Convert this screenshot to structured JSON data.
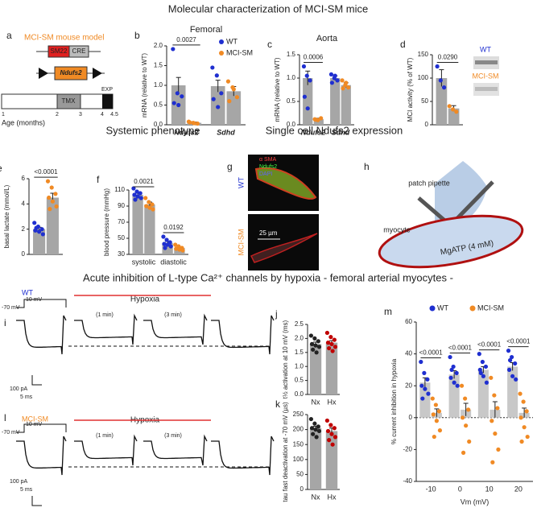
{
  "headings": {
    "top": "Molecular characterization of MCI-SM mice",
    "systemic": "Systemic phenotype",
    "single_cell": "Single cell Ndufs2 expression",
    "acute": "Acute inhibition of L-type Ca²⁺ channels by hypoxia - femoral arterial myocytes -"
  },
  "panel_a": {
    "letter": "a",
    "title": "MCI-SM mouse model",
    "promoter": "SM22",
    "cre": "CRE",
    "gene": "Ndufs2",
    "tmx": "TMX",
    "exp": "EXP",
    "ticks": [
      "1",
      "2",
      "3",
      "4",
      "4.5"
    ],
    "axis_label": "Age (months)"
  },
  "panel_g": {
    "letter": "g",
    "stain1": "α SMA",
    "stain2": "Ndufs2",
    "stain3": "DAPI",
    "wt": "WT",
    "mci": "MCI-SM",
    "scale": "25 µm"
  },
  "panel_h": {
    "letter": "h",
    "pipette": "patch pipette",
    "cell": "myocyte",
    "solution": "MgATP (4 mM)"
  },
  "panel_i": {
    "letter": "i",
    "genotype": "WT",
    "hold": "-70 mV",
    "step": "10 mV",
    "condition": "Hypoxia",
    "t1": "(1 min)",
    "t2": "(3 min)",
    "scale_i": "100 pA",
    "scale_t": "5 ms"
  },
  "panel_l": {
    "letter": "l",
    "genotype": "MCI-SM",
    "hold": "-70 mV",
    "step": "10 mV",
    "condition": "Hypoxia",
    "t1": "(1 min)",
    "t2": "(3 min)",
    "scale_i": "100 pA",
    "scale_t": "5 ms"
  },
  "blot_labels": [
    "WT",
    "MCI-SM"
  ],
  "chart_data": [
    {
      "type": "bar",
      "letter": "b",
      "title": "Femoral",
      "ylabel": "mRNA (relative to WT)",
      "ylim": [
        0,
        2
      ],
      "yticks": [
        {
          "value": 0,
          "label": "0.0"
        },
        {
          "value": 0.5,
          "label": "0.5"
        },
        {
          "value": 1,
          "label": "1.0"
        },
        {
          "value": 1.5,
          "label": "1.5"
        },
        {
          "value": 2,
          "label": "2.0"
        }
      ],
      "categories": [
        "Ndufs2",
        "Sdhd"
      ],
      "italic_categories": true,
      "bar_color": "#a6a6a6",
      "legend": "upper right",
      "pvalues": [
        "0.0027",
        null
      ],
      "series": [
        {
          "name": "WT",
          "color": "#1f2fd0",
          "values": [
            1.0,
            0.98
          ],
          "errors": [
            0.2,
            0.15
          ],
          "points": [
            [
              1.92,
              0.8,
              0.72,
              0.55,
              0.5
            ],
            [
              1.45,
              1.25,
              0.8,
              0.65,
              0.45
            ]
          ]
        },
        {
          "name": "MCI-SM",
          "color": "#f08a24",
          "values": [
            0.05,
            0.85
          ],
          "errors": [
            0.02,
            0.12
          ],
          "points": [
            [
              0.08,
              0.05,
              0.03,
              0.06,
              0.04
            ],
            [
              1.1,
              0.95,
              0.7,
              0.6,
              0.9
            ]
          ]
        }
      ]
    },
    {
      "type": "bar",
      "letter": "c",
      "title": "Aorta",
      "ylabel": "mRNA (relative to WT)",
      "ylim": [
        0,
        1.5
      ],
      "yticks": [
        {
          "value": 0,
          "label": "0.0"
        },
        {
          "value": 0.5,
          "label": "0.5"
        },
        {
          "value": 1,
          "label": "1.0"
        },
        {
          "value": 1.5,
          "label": "1.5"
        }
      ],
      "categories": [
        "Ndufs2",
        "Sdhd"
      ],
      "italic_categories": true,
      "bar_color": "#a6a6a6",
      "pvalues": [
        "0.0006",
        null
      ],
      "series": [
        {
          "color": "#1f2fd0",
          "values": [
            1.0,
            1.0
          ],
          "errors": [
            0.15,
            0.05
          ],
          "points": [
            [
              1.25,
              1.05,
              0.95,
              0.6,
              0.35
            ],
            [
              1.08,
              1.0,
              0.95,
              0.9,
              1.05
            ]
          ]
        },
        {
          "color": "#f08a24",
          "values": [
            0.12,
            0.85
          ],
          "errors": [
            0.02,
            0.05
          ],
          "points": [
            [
              0.12,
              0.1,
              0.14,
              0.11
            ],
            [
              0.95,
              0.85,
              0.8,
              0.78,
              0.9
            ]
          ]
        }
      ]
    },
    {
      "type": "bar",
      "letter": "d",
      "ylabel": "MCI activity (% of WT)",
      "ylim": [
        0,
        150
      ],
      "yticks": [
        0,
        50,
        100,
        150
      ],
      "categories": [
        null
      ],
      "bar_color": "#a6a6a6",
      "pvalues": [
        "0.0290"
      ],
      "series": [
        {
          "color": "#1f2fd0",
          "values": [
            100
          ],
          "errors": [
            18
          ],
          "points": [
            [
              125,
              95,
              80
            ]
          ]
        },
        {
          "color": "#f08a24",
          "values": [
            35
          ],
          "errors": [
            6
          ],
          "points": [
            [
              40,
              33,
              28
            ]
          ]
        }
      ]
    },
    {
      "type": "bar",
      "letter": "e",
      "ylabel": "basal lactate (mmol/L)",
      "ylim": [
        0,
        6
      ],
      "yticks": [
        0,
        2,
        4,
        6
      ],
      "categories": [
        null
      ],
      "bar_color": "#a6a6a6",
      "pvalues": [
        "<0.0001"
      ],
      "series": [
        {
          "color": "#1f2fd0",
          "values": [
            2.0
          ],
          "errors": [
            0.15
          ],
          "points": [
            [
              2.5,
              2.2,
              2.0,
              1.9,
              1.8,
              1.6,
              2.1
            ]
          ]
        },
        {
          "color": "#f08a24",
          "values": [
            4.5
          ],
          "errors": [
            0.35
          ],
          "points": [
            [
              5.8,
              5.3,
              4.8,
              4.5,
              4.2,
              3.8,
              3.6
            ]
          ]
        }
      ]
    },
    {
      "type": "bar",
      "letter": "f",
      "ylabel": "blood pressure (mmHg)",
      "ylim": [
        30,
        110
      ],
      "yticks": [
        30,
        50,
        70,
        90,
        110
      ],
      "categories": [
        "systolic",
        "diastolic"
      ],
      "bar_color": "#a6a6a6",
      "pvalues": [
        "0.0021",
        "0.0192"
      ],
      "series": [
        {
          "color": "#1f2fd0",
          "values": [
            104,
            44
          ],
          "errors": [
            2,
            2
          ],
          "points": [
            [
              112,
              108,
              106,
              104,
              102,
              100,
              98
            ],
            [
              52,
              48,
              45,
              43,
              42,
              40,
              38
            ]
          ]
        },
        {
          "color": "#f08a24",
          "values": [
            92,
            38
          ],
          "errors": [
            3,
            1
          ],
          "points": [
            [
              100,
              95,
              92,
              90,
              88,
              86
            ],
            [
              42,
              40,
              38,
              37,
              36,
              35
            ]
          ]
        }
      ]
    },
    {
      "type": "bar",
      "letter": "j",
      "ylabel": "t½ activation at 10 mV (ms)",
      "ylim": [
        0,
        2.5
      ],
      "yticks": [
        {
          "value": 0,
          "label": "0.0"
        },
        {
          "value": 0.5,
          "label": "0.5"
        },
        {
          "value": 1,
          "label": "1.0"
        },
        {
          "value": 1.5,
          "label": "1.5"
        },
        {
          "value": 2,
          "label": "2.0"
        },
        {
          "value": 2.5,
          "label": "2.5"
        }
      ],
      "categories": [
        "Nx",
        "Hx"
      ],
      "bar_color": "#a6a6a6",
      "series": [
        {
          "point_colors": [
            "#222222",
            "#c00000"
          ],
          "values": [
            1.8,
            1.85
          ],
          "errors": [
            0.07,
            0.07
          ],
          "points": [
            [
              2.1,
              2.0,
              1.9,
              1.8,
              1.75,
              1.7,
              1.6,
              1.5
            ],
            [
              2.2,
              2.05,
              1.95,
              1.85,
              1.8,
              1.7,
              1.65,
              1.55
            ]
          ]
        }
      ]
    },
    {
      "type": "bar",
      "letter": "k",
      "ylabel": "tau fast deactivation at -70 mV (µs)",
      "ylim": [
        0,
        250
      ],
      "yticks": [
        0,
        50,
        100,
        150,
        200,
        250
      ],
      "categories": [
        "Nx",
        "Hx"
      ],
      "bar_color": "#a6a6a6",
      "series": [
        {
          "point_colors": [
            "#222222",
            "#c00000"
          ],
          "values": [
            205,
            195
          ],
          "errors": [
            6,
            10
          ],
          "points": [
            [
              235,
              220,
              210,
              205,
              200,
              195,
              185,
              175
            ],
            [
              230,
              215,
              205,
              195,
              185,
              175,
              165,
              150
            ]
          ]
        }
      ]
    },
    {
      "type": "bar",
      "letter": "m",
      "ylabel": "% current inhibition in hypoxia",
      "xlabel": "Vm (mV)",
      "ylim": [
        -40,
        60
      ],
      "yticks": [
        -40,
        -20,
        0,
        20,
        40,
        60
      ],
      "categories": [
        "-10",
        "0",
        "10",
        "20"
      ],
      "bar_color": "#c8c8c8",
      "zero_line": true,
      "legend": "top",
      "pvalues": [
        "<0.0001",
        "<0.0001",
        "<0.0001",
        "<0.0001"
      ],
      "series": [
        {
          "name": "WT",
          "color": "#1f2fd0",
          "values": [
            22,
            27,
            30,
            32
          ],
          "errors": [
            3,
            2.5,
            2,
            2.5
          ],
          "points": [
            [
              35,
              28,
              24,
              20,
              18,
              15,
              12
            ],
            [
              38,
              32,
              28,
              25,
              22,
              20,
              30
            ],
            [
              40,
              35,
              32,
              30,
              26,
              22,
              28
            ],
            [
              42,
              38,
              34,
              30,
              26,
              24,
              36
            ]
          ]
        },
        {
          "name": "MCI-SM",
          "color": "#f08a24",
          "values": [
            3,
            5,
            5,
            3
          ],
          "errors": [
            2.5,
            4,
            5,
            3
          ],
          "points": [
            [
              12,
              8,
              4,
              2,
              -2,
              -8,
              -12
            ],
            [
              20,
              12,
              5,
              0,
              -5,
              -15,
              -22
            ],
            [
              25,
              14,
              6,
              -2,
              -10,
              -20,
              -28
            ],
            [
              15,
              10,
              4,
              0,
              -6,
              -12,
              -15
            ]
          ]
        }
      ]
    }
  ]
}
